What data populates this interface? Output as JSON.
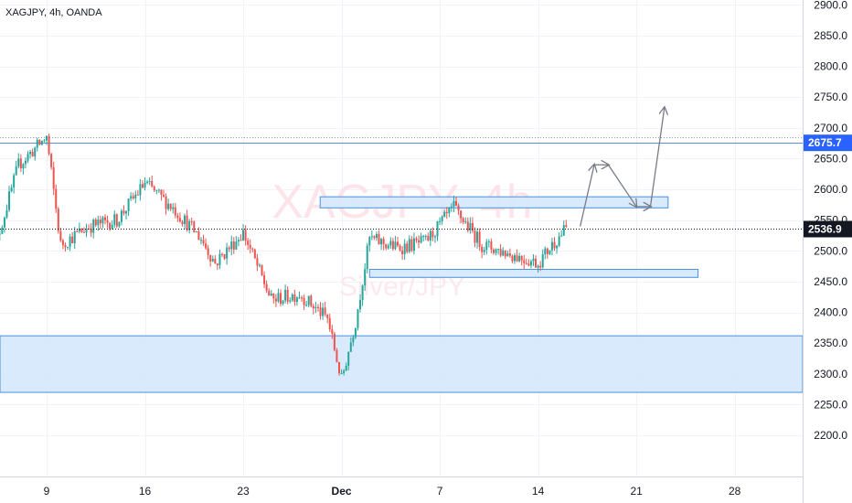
{
  "header": {
    "symbol_line": "XAGJPY, 4h, OANDA"
  },
  "watermark": {
    "main": "XAGJPY, 4h",
    "sub": "Silver/JPY"
  },
  "price_labels": {
    "upper_level": "2675.7",
    "last_price": "2536.9"
  },
  "colors": {
    "up": "#26a69a",
    "down": "#ef5350",
    "level_line": "#5b8dd8",
    "zone_fill": "#d6e8fd",
    "zone_stroke": "#4a90d9",
    "last_price_bg": "#131722",
    "upper_label_bg": "#2962ff",
    "arrow": "#787b86",
    "grid": "#f0f3fa"
  },
  "chart_data": {
    "type": "candlestick",
    "title": "XAGJPY, 4h, OANDA",
    "ylim": [
      2160,
      2905
    ],
    "y_ticks": [
      "2900.0",
      "2850.0",
      "2800.0",
      "2750.0",
      "2700.0",
      "2650.0",
      "2600.0",
      "2550.0",
      "2500.0",
      "2450.0",
      "2400.0",
      "2350.0",
      "2300.0",
      "2250.0",
      "2200.0"
    ],
    "x_ticks": [
      "9",
      "16",
      "23",
      "Dec",
      "7",
      "14",
      "21",
      "28"
    ],
    "last_price": 2536.9,
    "horizontal_levels": [
      2675.7,
      2685
    ],
    "zones": [
      {
        "from": 2270,
        "to": 2362
      },
      {
        "from": 2570,
        "to": 2588
      },
      {
        "from": 2457,
        "to": 2470
      }
    ],
    "price_path": [
      {
        "date": "Nov 5",
        "price": 2480
      },
      {
        "date": "Nov 7",
        "price": 2640
      },
      {
        "date": "Nov 9",
        "price": 2685
      },
      {
        "date": "Nov 10",
        "price": 2510
      },
      {
        "date": "Nov 12",
        "price": 2540
      },
      {
        "date": "Nov 14",
        "price": 2550
      },
      {
        "date": "Nov 16",
        "price": 2610
      },
      {
        "date": "Nov 18",
        "price": 2570
      },
      {
        "date": "Nov 20",
        "price": 2520
      },
      {
        "date": "Nov 21",
        "price": 2480
      },
      {
        "date": "Nov 23",
        "price": 2530
      },
      {
        "date": "Nov 25",
        "price": 2420
      },
      {
        "date": "Nov 27",
        "price": 2430
      },
      {
        "date": "Nov 29",
        "price": 2390
      },
      {
        "date": "Nov 30",
        "price": 2290
      },
      {
        "date": "Dec 1",
        "price": 2385
      },
      {
        "date": "Dec 2",
        "price": 2520
      },
      {
        "date": "Dec 4",
        "price": 2505
      },
      {
        "date": "Dec 6",
        "price": 2515
      },
      {
        "date": "Dec 8",
        "price": 2570
      },
      {
        "date": "Dec 10",
        "price": 2510
      },
      {
        "date": "Dec 12",
        "price": 2495
      },
      {
        "date": "Dec 14",
        "price": 2480
      },
      {
        "date": "Dec 15",
        "price": 2510
      },
      {
        "date": "Dec 16",
        "price": 2537
      }
    ],
    "projection_path": [
      {
        "date": "Dec 17",
        "price": 2540
      },
      {
        "date": "Dec 18",
        "price": 2640
      },
      {
        "date": "Dec 19",
        "price": 2640
      },
      {
        "date": "Dec 21",
        "price": 2572
      },
      {
        "date": "Dec 22",
        "price": 2572
      },
      {
        "date": "Dec 23",
        "price": 2733
      }
    ]
  }
}
